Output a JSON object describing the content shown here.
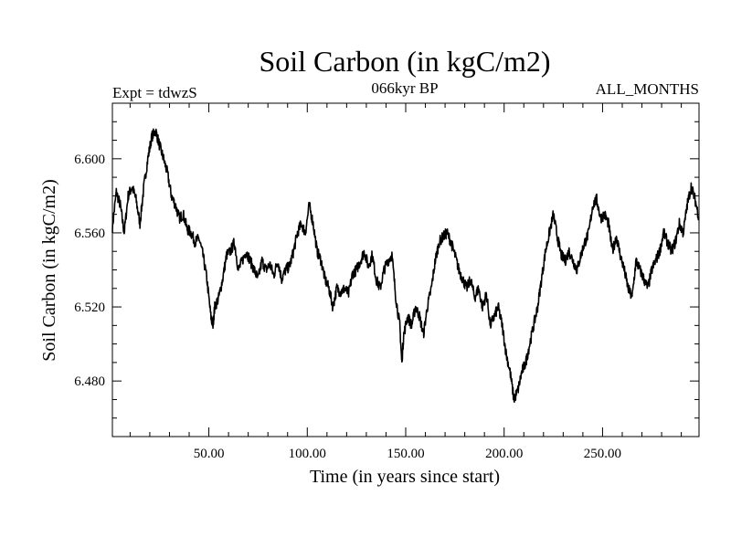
{
  "chart_data": {
    "type": "line",
    "title": "Soil Carbon (in kgC/m2)",
    "subtitle_left": "Expt = tdwzS",
    "subtitle_center": "066kyr BP",
    "subtitle_right": "ALL_MONTHS",
    "xlabel": "Time (in years since start)",
    "ylabel": "Soil Carbon (in kgC/m2)",
    "xlim": [
      1,
      299
    ],
    "ylim": [
      6.45,
      6.63
    ],
    "xticks": [
      50,
      100,
      150,
      200,
      250
    ],
    "xtick_labels": [
      "50.00",
      "100.00",
      "150.00",
      "200.00",
      "250.00"
    ],
    "yticks": [
      6.48,
      6.52,
      6.56,
      6.6
    ],
    "ytick_labels": [
      "6.480",
      "6.520",
      "6.560",
      "6.600"
    ],
    "grid": false,
    "series": [
      {
        "color": "#000000",
        "points": [
          [
            1,
            6.563
          ],
          [
            3,
            6.582
          ],
          [
            5,
            6.575
          ],
          [
            7,
            6.56
          ],
          [
            9,
            6.58
          ],
          [
            11,
            6.585
          ],
          [
            13,
            6.578
          ],
          [
            15,
            6.565
          ],
          [
            17,
            6.585
          ],
          [
            19,
            6.6
          ],
          [
            21,
            6.612
          ],
          [
            23,
            6.615
          ],
          [
            25,
            6.607
          ],
          [
            27,
            6.6
          ],
          [
            29,
            6.592
          ],
          [
            31,
            6.58
          ],
          [
            33,
            6.575
          ],
          [
            35,
            6.568
          ],
          [
            37,
            6.57
          ],
          [
            39,
            6.562
          ],
          [
            41,
            6.56
          ],
          [
            43,
            6.555
          ],
          [
            45,
            6.557
          ],
          [
            47,
            6.548
          ],
          [
            49,
            6.535
          ],
          [
            51,
            6.515
          ],
          [
            52,
            6.51
          ],
          [
            53,
            6.52
          ],
          [
            55,
            6.525
          ],
          [
            57,
            6.535
          ],
          [
            59,
            6.548
          ],
          [
            61,
            6.55
          ],
          [
            63,
            6.555
          ],
          [
            65,
            6.54
          ],
          [
            67,
            6.545
          ],
          [
            69,
            6.55
          ],
          [
            71,
            6.545
          ],
          [
            73,
            6.54
          ],
          [
            75,
            6.535
          ],
          [
            77,
            6.545
          ],
          [
            79,
            6.54
          ],
          [
            81,
            6.543
          ],
          [
            83,
            6.537
          ],
          [
            85,
            6.545
          ],
          [
            87,
            6.535
          ],
          [
            89,
            6.54
          ],
          [
            91,
            6.542
          ],
          [
            93,
            6.55
          ],
          [
            95,
            6.56
          ],
          [
            97,
            6.565
          ],
          [
            99,
            6.56
          ],
          [
            101,
            6.575
          ],
          [
            103,
            6.565
          ],
          [
            105,
            6.55
          ],
          [
            107,
            6.545
          ],
          [
            109,
            6.535
          ],
          [
            111,
            6.53
          ],
          [
            113,
            6.52
          ],
          [
            115,
            6.53
          ],
          [
            117,
            6.528
          ],
          [
            119,
            6.53
          ],
          [
            121,
            6.527
          ],
          [
            123,
            6.538
          ],
          [
            125,
            6.54
          ],
          [
            127,
            6.545
          ],
          [
            129,
            6.55
          ],
          [
            131,
            6.542
          ],
          [
            133,
            6.548
          ],
          [
            135,
            6.535
          ],
          [
            137,
            6.53
          ],
          [
            139,
            6.54
          ],
          [
            141,
            6.545
          ],
          [
            143,
            6.548
          ],
          [
            145,
            6.525
          ],
          [
            147,
            6.51
          ],
          [
            148,
            6.49
          ],
          [
            149,
            6.505
          ],
          [
            151,
            6.515
          ],
          [
            153,
            6.51
          ],
          [
            155,
            6.52
          ],
          [
            157,
            6.515
          ],
          [
            159,
            6.505
          ],
          [
            161,
            6.52
          ],
          [
            163,
            6.53
          ],
          [
            165,
            6.545
          ],
          [
            167,
            6.555
          ],
          [
            169,
            6.558
          ],
          [
            171,
            6.56
          ],
          [
            173,
            6.555
          ],
          [
            175,
            6.548
          ],
          [
            177,
            6.54
          ],
          [
            179,
            6.535
          ],
          [
            181,
            6.53
          ],
          [
            183,
            6.535
          ],
          [
            185,
            6.525
          ],
          [
            187,
            6.53
          ],
          [
            189,
            6.52
          ],
          [
            191,
            6.527
          ],
          [
            193,
            6.51
          ],
          [
            195,
            6.515
          ],
          [
            197,
            6.52
          ],
          [
            199,
            6.51
          ],
          [
            201,
            6.495
          ],
          [
            203,
            6.485
          ],
          [
            205,
            6.47
          ],
          [
            207,
            6.475
          ],
          [
            209,
            6.485
          ],
          [
            211,
            6.49
          ],
          [
            213,
            6.5
          ],
          [
            215,
            6.51
          ],
          [
            217,
            6.52
          ],
          [
            219,
            6.535
          ],
          [
            221,
            6.55
          ],
          [
            223,
            6.56
          ],
          [
            225,
            6.57
          ],
          [
            227,
            6.558
          ],
          [
            229,
            6.548
          ],
          [
            231,
            6.545
          ],
          [
            233,
            6.55
          ],
          [
            235,
            6.545
          ],
          [
            237,
            6.54
          ],
          [
            239,
            6.548
          ],
          [
            241,
            6.555
          ],
          [
            243,
            6.56
          ],
          [
            245,
            6.575
          ],
          [
            247,
            6.578
          ],
          [
            249,
            6.568
          ],
          [
            251,
            6.57
          ],
          [
            253,
            6.565
          ],
          [
            255,
            6.55
          ],
          [
            257,
            6.558
          ],
          [
            259,
            6.548
          ],
          [
            261,
            6.54
          ],
          [
            263,
            6.53
          ],
          [
            265,
            6.525
          ],
          [
            267,
            6.545
          ],
          [
            269,
            6.54
          ],
          [
            271,
            6.535
          ],
          [
            273,
            6.53
          ],
          [
            275,
            6.54
          ],
          [
            277,
            6.545
          ],
          [
            279,
            6.55
          ],
          [
            281,
            6.56
          ],
          [
            283,
            6.555
          ],
          [
            285,
            6.55
          ],
          [
            287,
            6.555
          ],
          [
            289,
            6.565
          ],
          [
            291,
            6.56
          ],
          [
            293,
            6.575
          ],
          [
            295,
            6.585
          ],
          [
            297,
            6.578
          ],
          [
            299,
            6.568
          ]
        ]
      }
    ]
  }
}
